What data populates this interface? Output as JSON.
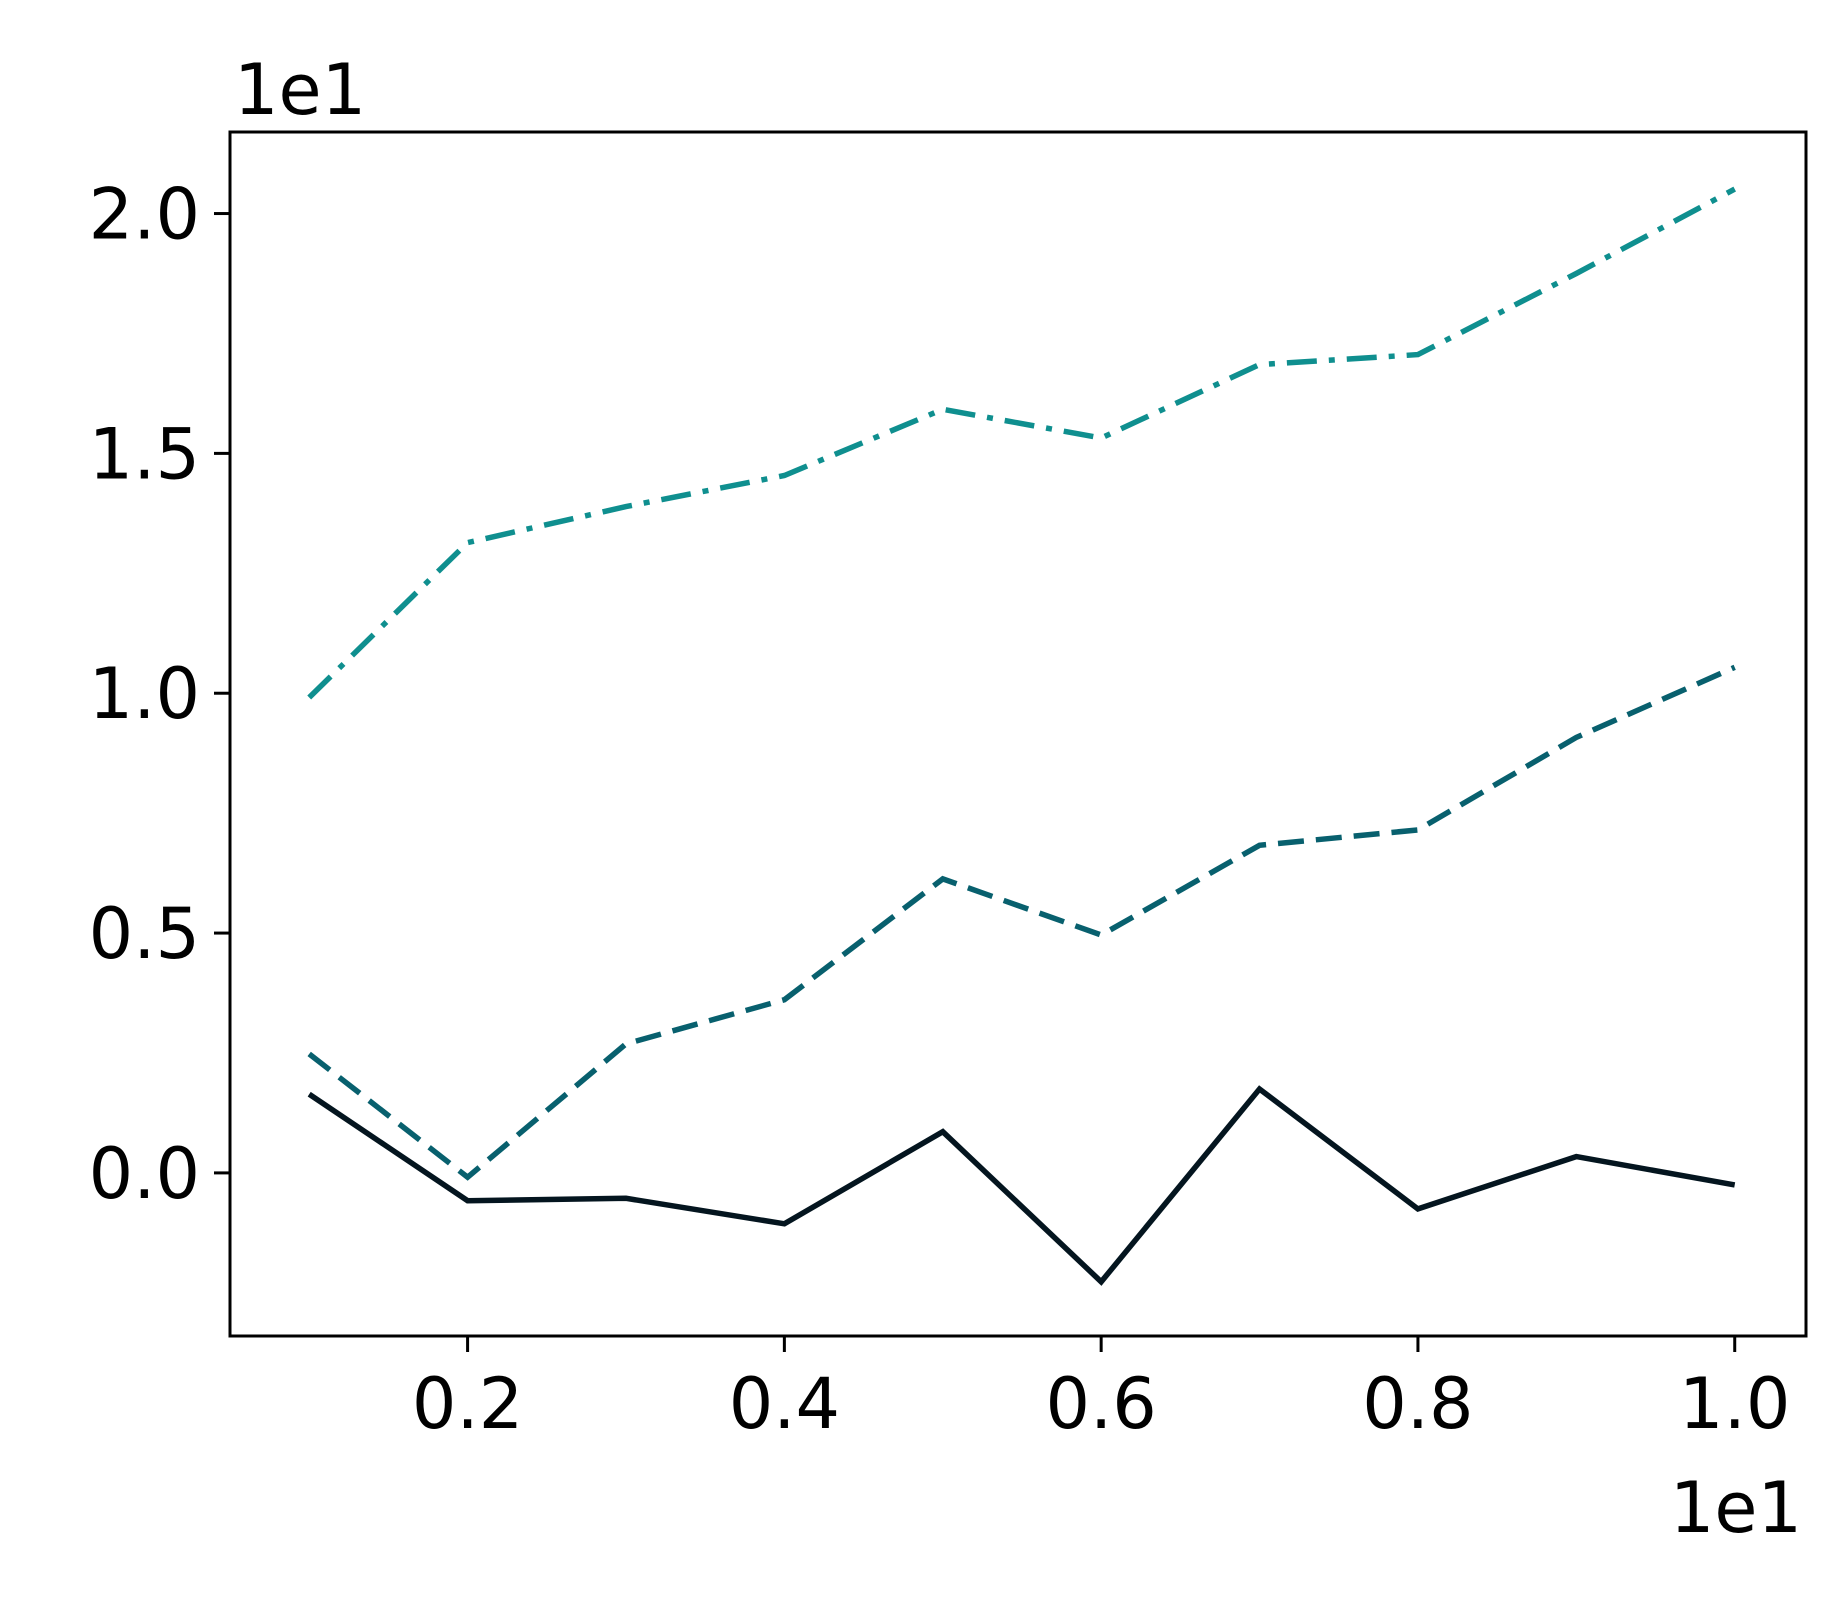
{
  "chart_data": {
    "type": "line",
    "x_offset_text": "1e1",
    "y_offset_text": "1e1",
    "xlim": [
      0.05,
      1.045
    ],
    "ylim": [
      -0.34,
      2.17
    ],
    "x_ticks": [
      0.2,
      0.4,
      0.6,
      0.8,
      1.0
    ],
    "x_tick_labels": [
      "0.2",
      "0.4",
      "0.6",
      "0.8",
      "1.0"
    ],
    "y_ticks": [
      0.0,
      0.5,
      1.0,
      1.5,
      2.0
    ],
    "y_tick_labels": [
      "0.0",
      "0.5",
      "1.0",
      "1.5",
      "2.0"
    ],
    "x": [
      0.1,
      0.2,
      0.3,
      0.4,
      0.5,
      0.6,
      0.7,
      0.8,
      0.9,
      1.0
    ],
    "grid": false,
    "legend": "none",
    "series": [
      {
        "style": "solid",
        "color": "#04151f",
        "values": [
          0.164,
          -0.058,
          -0.053,
          -0.106,
          0.086,
          -0.227,
          0.175,
          -0.075,
          0.034,
          -0.025
        ]
      },
      {
        "style": "dashed",
        "color": "#08606e",
        "values": [
          0.248,
          -0.009,
          0.269,
          0.361,
          0.613,
          0.496,
          0.683,
          0.715,
          0.908,
          1.054
        ]
      },
      {
        "style": "dashdot",
        "color": "#0f8f8f",
        "values": [
          0.991,
          1.314,
          1.389,
          1.454,
          1.592,
          1.532,
          1.685,
          1.706,
          1.875,
          2.051
        ]
      }
    ]
  }
}
